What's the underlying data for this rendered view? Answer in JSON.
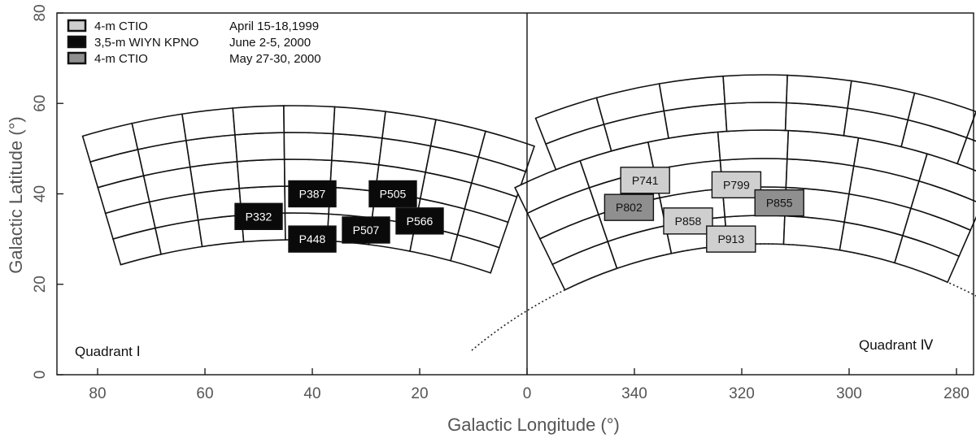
{
  "colors": {
    "cell_fill": "#ffffff",
    "cell_stroke": "#111111",
    "ctio_1999": "#cfcfcf",
    "wiyn_2000": "#0a0a0a",
    "ctio_2000": "#8f8f8f"
  },
  "legend": {
    "items": [
      {
        "swatch": "ctio_1999",
        "telescope": "4-m CTIO",
        "dates": "April 15-18,1999"
      },
      {
        "swatch": "wiyn_2000",
        "telescope": "3,5-m WIYN  KPNO",
        "dates": "June 2-5, 2000"
      },
      {
        "swatch": "ctio_2000",
        "telescope": "4-m CTIO",
        "dates": "May 27-30, 2000"
      }
    ]
  },
  "quadrant_labels": {
    "left": "Quadrant Ⅰ",
    "right": "Quadrant Ⅳ"
  },
  "chart_data": {
    "type": "scatter",
    "xlabel": "Galactic Longitude (°)",
    "ylabel": "Galactic Latitude (°)",
    "ylim": [
      0,
      80
    ],
    "panels": [
      {
        "name": "Quadrant I",
        "xlim": [
          90,
          0
        ],
        "x_ticks": [
          "80",
          "60",
          "40",
          "20",
          "0"
        ]
      },
      {
        "name": "Quadrant IV",
        "xlim": [
          360,
          275
        ],
        "x_ticks": [
          "340",
          "320",
          "300",
          "280"
        ]
      }
    ],
    "y_ticks": [
      "0",
      "20",
      "40",
      "60",
      "80"
    ],
    "observed_fields": [
      {
        "name": "P332",
        "l": 50,
        "b": 35,
        "campaign": "wiyn_2000"
      },
      {
        "name": "P387",
        "l": 40,
        "b": 40,
        "campaign": "wiyn_2000"
      },
      {
        "name": "P448",
        "l": 40,
        "b": 30,
        "campaign": "wiyn_2000"
      },
      {
        "name": "P505",
        "l": 25,
        "b": 40,
        "campaign": "wiyn_2000"
      },
      {
        "name": "P507",
        "l": 30,
        "b": 32,
        "campaign": "wiyn_2000"
      },
      {
        "name": "P566",
        "l": 20,
        "b": 34,
        "campaign": "wiyn_2000"
      },
      {
        "name": "P741",
        "l": 338,
        "b": 43,
        "campaign": "ctio_1999"
      },
      {
        "name": "P799",
        "l": 321,
        "b": 42,
        "campaign": "ctio_1999"
      },
      {
        "name": "P802",
        "l": 341,
        "b": 37,
        "campaign": "ctio_2000"
      },
      {
        "name": "P855",
        "l": 313,
        "b": 38,
        "campaign": "ctio_2000"
      },
      {
        "name": "P858",
        "l": 330,
        "b": 34,
        "campaign": "ctio_1999"
      },
      {
        "name": "P913",
        "l": 322,
        "b": 30,
        "campaign": "ctio_1999"
      }
    ]
  }
}
